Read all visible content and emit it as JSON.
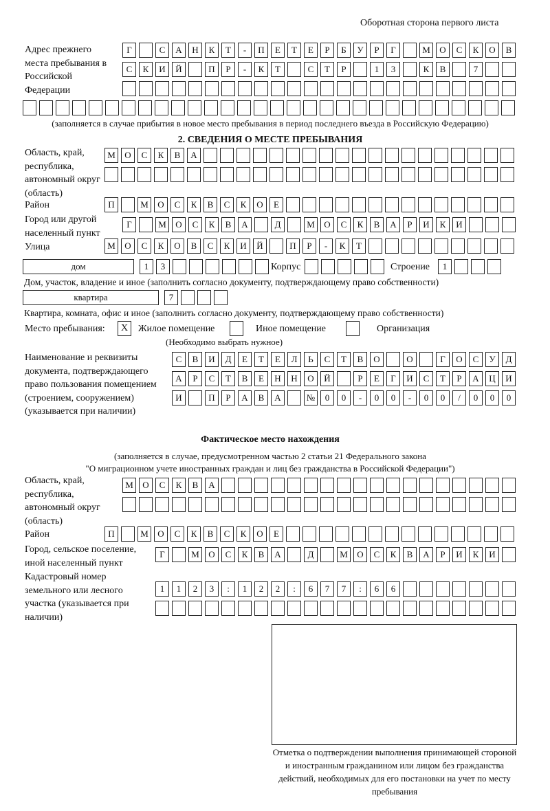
{
  "header": {
    "page_side": "Оборотная сторона первого листа"
  },
  "previous_address": {
    "label": "Адрес прежнего места пребывания в Российской Федерации",
    "rows": [
      [
        "Г",
        "",
        "С",
        "А",
        "Н",
        "К",
        "Т",
        "-",
        "П",
        "Е",
        "Т",
        "Е",
        "Р",
        "Б",
        "У",
        "Р",
        "Г",
        "",
        "М",
        "О",
        "С",
        "К",
        "О",
        "В"
      ],
      [
        "С",
        "К",
        "И",
        "Й",
        "",
        "П",
        "Р",
        "-",
        "К",
        "Т",
        "",
        "С",
        "Т",
        "Р",
        "",
        "1",
        "3",
        "",
        "К",
        "В",
        "",
        "7",
        "",
        ""
      ],
      [
        "",
        "",
        "",
        "",
        "",
        "",
        "",
        "",
        "",
        "",
        "",
        "",
        "",
        "",
        "",
        "",
        "",
        "",
        "",
        "",
        "",
        "",
        "",
        ""
      ],
      [
        "",
        "",
        "",
        "",
        "",
        "",
        "",
        "",
        "",
        "",
        "",
        "",
        "",
        "",
        "",
        "",
        "",
        "",
        "",
        "",
        "",
        "",
        "",
        "",
        "",
        "",
        "",
        "",
        "",
        ""
      ]
    ],
    "note": "(заполняется в случае прибытия в новое место пребывания в период последнего въезда в Российскую Федерацию)"
  },
  "section2": {
    "title": "2. СВЕДЕНИЯ О МЕСТЕ ПРЕБЫВАНИЯ",
    "region_label": "Область, край, республика, автономный округ (область)",
    "region_rows": [
      [
        "М",
        "О",
        "С",
        "К",
        "В",
        "А",
        "",
        "",
        "",
        "",
        "",
        "",
        "",
        "",
        "",
        "",
        "",
        "",
        "",
        "",
        "",
        "",
        "",
        "",
        ""
      ],
      [
        "",
        "",
        "",
        "",
        "",
        "",
        "",
        "",
        "",
        "",
        "",
        "",
        "",
        "",
        "",
        "",
        "",
        "",
        "",
        "",
        "",
        "",
        "",
        "",
        ""
      ]
    ],
    "district_label": "Район",
    "district_row": [
      "П",
      "",
      "М",
      "О",
      "С",
      "К",
      "В",
      "С",
      "К",
      "О",
      "Е",
      "",
      "",
      "",
      "",
      "",
      "",
      "",
      "",
      "",
      "",
      "",
      "",
      "",
      ""
    ],
    "city_label": "Город или другой населенный пункт",
    "city_row": [
      "Г",
      "",
      "М",
      "О",
      "С",
      "К",
      "В",
      "А",
      "",
      "Д",
      "",
      "М",
      "О",
      "С",
      "К",
      "В",
      "А",
      "Р",
      "И",
      "К",
      "И",
      "",
      "",
      ""
    ],
    "street_label": "Улица",
    "street_row": [
      "М",
      "О",
      "С",
      "К",
      "О",
      "В",
      "С",
      "К",
      "И",
      "Й",
      "",
      "П",
      "Р",
      "-",
      "К",
      "Т",
      "",
      "",
      "",
      "",
      "",
      "",
      "",
      "",
      ""
    ],
    "house_type": "дом",
    "house_row": [
      "1",
      "3",
      "",
      "",
      "",
      "",
      "",
      ""
    ],
    "korpus_label": "Корпус",
    "korpus_row": [
      "",
      "",
      "",
      "",
      ""
    ],
    "building_label": "Строение",
    "building_row": [
      "1",
      "",
      "",
      ""
    ],
    "house_note": "Дом, участок, владение и иное (заполнить согласно документу, подтверждающему право собственности)",
    "apt_type": "квартира",
    "apt_row": [
      "7",
      "",
      "",
      ""
    ],
    "apt_note": "Квартира, комната, офис и иное (заполнить согласно документу, подтверждающему право собственности)",
    "stay_place_label": "Место пребывания:",
    "stay_options": [
      {
        "label": "Жилое помещение",
        "mark": "Х"
      },
      {
        "label": "Иное помещение",
        "mark": ""
      },
      {
        "label": "Организация",
        "mark": ""
      }
    ],
    "stay_note": "(Необходимо выбрать нужное)",
    "doc_label": "Наименование и реквизиты документа, подтверждающего право пользования помещением (строением, сооружением) (указывается при наличии)",
    "doc_rows": [
      [
        "С",
        "В",
        "И",
        "Д",
        "Е",
        "Т",
        "Е",
        "Л",
        "Ь",
        "С",
        "Т",
        "В",
        "О",
        "",
        "О",
        "",
        "Г",
        "О",
        "С",
        "У",
        "Д"
      ],
      [
        "А",
        "Р",
        "С",
        "Т",
        "В",
        "Е",
        "Н",
        "Н",
        "О",
        "Й",
        "",
        "Р",
        "Е",
        "Г",
        "И",
        "С",
        "Т",
        "Р",
        "А",
        "Ц",
        "И"
      ],
      [
        "И",
        "",
        "П",
        "Р",
        "А",
        "В",
        "А",
        "",
        "№",
        "0",
        "0",
        "-",
        "0",
        "0",
        "-",
        "0",
        "0",
        "/",
        "0",
        "0",
        "0"
      ]
    ]
  },
  "actual": {
    "title": "Фактическое место нахождения",
    "note1": "(заполняется в случае, предусмотренном частью 2 статьи 21 Федерального закона",
    "note2": "\"О миграционном учете иностранных граждан и лиц без гражданства в Российской Федерации\")",
    "region_label": "Область, край, республика, автономный округ (область)",
    "region_rows": [
      [
        "М",
        "О",
        "С",
        "К",
        "В",
        "А",
        "",
        "",
        "",
        "",
        "",
        "",
        "",
        "",
        "",
        "",
        "",
        "",
        "",
        "",
        "",
        "",
        "",
        ""
      ],
      [
        "",
        "",
        "",
        "",
        "",
        "",
        "",
        "",
        "",
        "",
        "",
        "",
        "",
        "",
        "",
        "",
        "",
        "",
        "",
        "",
        "",
        "",
        "",
        ""
      ]
    ],
    "district_label": "Район",
    "district_row": [
      "П",
      "",
      "М",
      "О",
      "С",
      "К",
      "В",
      "С",
      "К",
      "О",
      "Е",
      "",
      "",
      "",
      "",
      "",
      "",
      "",
      "",
      "",
      "",
      "",
      "",
      "",
      ""
    ],
    "city_label": "Город, сельское поселение, иной населенный пункт",
    "city_row": [
      "Г",
      "",
      "М",
      "О",
      "С",
      "К",
      "В",
      "А",
      "",
      "Д",
      "",
      "М",
      "О",
      "С",
      "К",
      "В",
      "А",
      "Р",
      "И",
      "К",
      "И",
      ""
    ],
    "cadastral_label": "Кадастровый номер земельного или лесного участка (указывается при наличии)",
    "cadastral_rows": [
      [
        "1",
        "1",
        "2",
        "3",
        ":",
        "1",
        "2",
        "2",
        ":",
        "6",
        "7",
        "7",
        ":",
        "6",
        "6",
        "",
        "",
        "",
        "",
        "",
        "",
        ""
      ],
      [
        "",
        "",
        "",
        "",
        "",
        "",
        "",
        "",
        "",
        "",
        "",
        "",
        "",
        "",
        "",
        "",
        "",
        "",
        "",
        "",
        "",
        ""
      ]
    ]
  },
  "confirmation": {
    "caption": "Отметка о подтверждении выполнения принимающей стороной и иностранным гражданином или лицом без гражданства действий, необходимых для его постановки на учет по месту пребывания"
  }
}
